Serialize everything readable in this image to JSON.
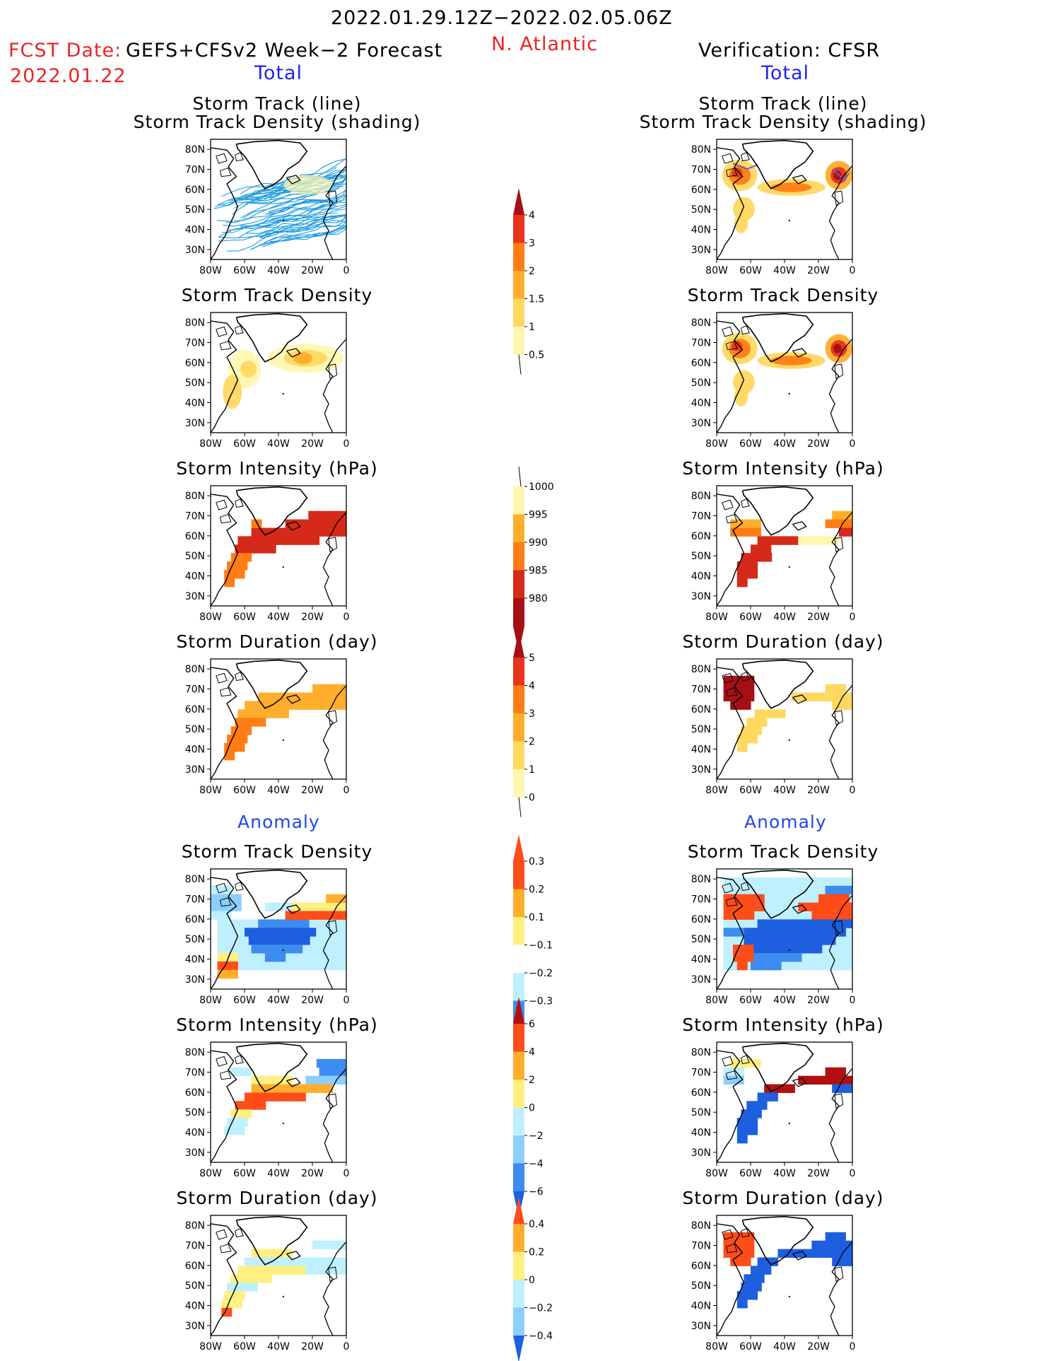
{
  "header": {
    "date_range": "2022.01.29.12Z−2022.02.05.06Z",
    "region": "N. Atlantic",
    "fcst_label": "FCST Date:",
    "fcst_model": "GEFS+CFSv2 Week−2 Forecast",
    "fcst_date": "2022.01.22",
    "verification": "Verification: CFSR"
  },
  "sections": {
    "total_left": "Total",
    "total_right": "Total",
    "anomaly_left": "Anomaly",
    "anomaly_right": "Anomaly"
  },
  "panel_titles": {
    "track_line": "Storm Track (line)",
    "track_shading": "Storm Track Density (shading)",
    "density": "Storm Track Density",
    "intensity": "Storm Intensity (hPa)",
    "duration": "Storm Duration (day)"
  },
  "axes": {
    "lat_ticks": [
      "80N",
      "70N",
      "60N",
      "50N",
      "40N",
      "30N"
    ],
    "lon_ticks": [
      "80W",
      "60W",
      "40W",
      "20W",
      "0"
    ]
  },
  "colors": {
    "lines": "#1e9be0",
    "total_scale": [
      "#fff7b0",
      "#ffd860",
      "#ffae2c",
      "#ff7d14",
      "#e8341c",
      "#a50f15"
    ],
    "intensity_scale": [
      "#a50f15",
      "#d52a1a",
      "#ff7d14",
      "#ffae2c",
      "#fff7b0"
    ],
    "anomaly_pos": [
      "#fff080",
      "#ffae2c",
      "#ff4d1a",
      "#b01010"
    ],
    "anomaly_neg": [
      "#bff0ff",
      "#8ccfff",
      "#3d8cf0",
      "#1e5fe0"
    ]
  },
  "colorbars": {
    "total_density": [
      "0.5",
      "1",
      "1.5",
      "2",
      "3",
      "4"
    ],
    "total_intensity": [
      "1000",
      "995",
      "990",
      "985",
      "980"
    ],
    "total_duration": [
      "0",
      "1",
      "2",
      "3",
      "4",
      "5"
    ],
    "anom_density": [
      "0.3",
      "0.2",
      "0.1",
      "−0.1",
      "−0.2",
      "−0.3"
    ],
    "anom_intensity": [
      "6",
      "4",
      "2",
      "0",
      "−2",
      "−4",
      "−6"
    ],
    "anom_duration": [
      "0.4",
      "0.2",
      "0",
      "−0.2",
      "−0.4"
    ]
  }
}
